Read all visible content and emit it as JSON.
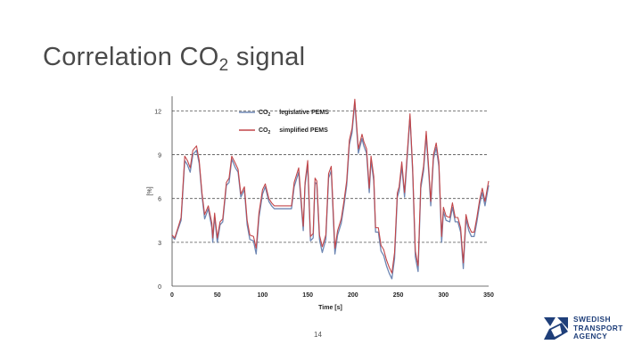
{
  "slide": {
    "title_main": "Correlation CO",
    "title_sub": "2",
    "title_tail": " signal",
    "page_number": "14"
  },
  "logo": {
    "line1": "SWEDISH",
    "line2": "TRANSPORT",
    "line3": "AGENCY",
    "color": "#1f3f7a"
  },
  "chart_data": {
    "type": "line",
    "xlabel": "Time [s]",
    "ylabel": "[%]",
    "xlim": [
      0,
      350
    ],
    "ylim": [
      0,
      13
    ],
    "xticks": [
      0,
      50,
      100,
      150,
      200,
      250,
      300,
      350
    ],
    "yticks": [
      0,
      3,
      6,
      9,
      12
    ],
    "grid": "horizontal dashed",
    "legend_position": "top-left",
    "series": [
      {
        "name": "legislative PEMS",
        "legend_prefix": "CO",
        "legend_sub": "2",
        "color": "#6d86b3",
        "x": [
          0,
          3,
          6,
          10,
          14,
          17,
          20,
          23,
          27,
          30,
          33,
          36,
          40,
          44,
          45,
          47,
          50,
          53,
          56,
          60,
          63,
          66,
          70,
          73,
          76,
          80,
          83,
          86,
          90,
          93,
          96,
          100,
          103,
          107,
          110,
          113,
          116,
          120,
          124,
          128,
          132,
          135,
          140,
          145,
          147,
          150,
          153,
          156,
          158,
          160,
          163,
          166,
          170,
          173,
          176,
          180,
          183,
          187,
          190,
          193,
          196,
          199,
          202,
          206,
          210,
          212,
          215,
          218,
          220,
          223,
          225,
          228,
          231,
          234,
          237,
          240,
          243,
          246,
          249,
          251,
          254,
          257,
          260,
          263,
          266,
          269,
          272,
          275,
          278,
          281,
          284,
          286,
          289,
          292,
          295,
          298,
          300,
          303,
          307,
          310,
          313,
          316,
          319,
          322,
          325,
          328,
          331,
          334,
          337,
          340,
          343,
          346,
          350
        ],
        "y": [
          3.4,
          3.2,
          3.8,
          4.5,
          8.6,
          8.3,
          7.8,
          9.0,
          9.3,
          8.4,
          6.2,
          4.6,
          5.3,
          4.0,
          3.0,
          4.8,
          3.0,
          4.2,
          4.4,
          6.9,
          7.1,
          8.7,
          8.1,
          7.8,
          6.1,
          6.6,
          4.2,
          3.2,
          3.1,
          2.2,
          4.7,
          6.3,
          6.8,
          5.8,
          5.5,
          5.3,
          5.3,
          5.3,
          5.3,
          5.3,
          5.3,
          6.8,
          7.8,
          3.8,
          6.9,
          8.3,
          3.1,
          3.3,
          7.1,
          7.0,
          3.2,
          2.3,
          3.2,
          7.4,
          7.9,
          2.2,
          3.5,
          4.3,
          5.5,
          6.9,
          9.7,
          10.5,
          12.6,
          9.1,
          10.1,
          9.6,
          9.1,
          6.4,
          8.6,
          7.2,
          3.7,
          3.7,
          2.4,
          2.1,
          1.4,
          0.9,
          0.5,
          1.9,
          6.1,
          6.5,
          8.2,
          6.1,
          8.8,
          11.6,
          7.8,
          2.0,
          1.0,
          6.7,
          7.9,
          10.3,
          7.5,
          5.5,
          8.7,
          9.5,
          8.2,
          3.0,
          5.1,
          4.5,
          4.4,
          5.4,
          4.4,
          4.4,
          3.7,
          1.2,
          4.6,
          3.8,
          3.4,
          3.4,
          4.4,
          5.6,
          6.4,
          5.5,
          6.9
        ]
      },
      {
        "name": "simplified PEMS",
        "legend_prefix": "CO",
        "legend_sub": "2",
        "color": "#c24548",
        "x": [
          0,
          3,
          6,
          10,
          14,
          17,
          20,
          23,
          27,
          30,
          33,
          36,
          40,
          44,
          45,
          47,
          50,
          53,
          56,
          60,
          63,
          66,
          70,
          73,
          76,
          80,
          83,
          86,
          90,
          93,
          96,
          100,
          103,
          107,
          110,
          113,
          116,
          120,
          124,
          128,
          132,
          135,
          140,
          145,
          147,
          150,
          153,
          156,
          158,
          160,
          163,
          166,
          170,
          173,
          176,
          180,
          183,
          187,
          190,
          193,
          196,
          199,
          202,
          206,
          210,
          212,
          215,
          218,
          220,
          223,
          225,
          228,
          231,
          234,
          237,
          240,
          243,
          246,
          249,
          251,
          254,
          257,
          260,
          263,
          266,
          269,
          272,
          275,
          278,
          281,
          284,
          286,
          289,
          292,
          295,
          298,
          300,
          303,
          307,
          310,
          313,
          316,
          319,
          322,
          325,
          328,
          331,
          334,
          337,
          340,
          343,
          346,
          350
        ],
        "y": [
          3.5,
          3.3,
          3.9,
          4.7,
          8.9,
          8.6,
          8.1,
          9.3,
          9.6,
          8.6,
          6.4,
          4.9,
          5.5,
          4.3,
          3.3,
          5.0,
          3.3,
          4.4,
          4.6,
          7.1,
          7.4,
          8.9,
          8.4,
          8.0,
          6.3,
          6.8,
          4.5,
          3.5,
          3.4,
          2.6,
          5.0,
          6.6,
          7.0,
          6.0,
          5.7,
          5.5,
          5.5,
          5.5,
          5.5,
          5.5,
          5.5,
          7.1,
          8.1,
          4.1,
          7.1,
          8.6,
          3.4,
          3.6,
          7.4,
          7.2,
          3.5,
          2.7,
          3.5,
          7.7,
          8.2,
          2.6,
          3.8,
          4.6,
          5.8,
          7.2,
          10.0,
          10.8,
          12.8,
          9.4,
          10.4,
          9.9,
          9.4,
          6.7,
          8.9,
          7.5,
          4.0,
          4.0,
          2.8,
          2.5,
          1.8,
          1.3,
          0.9,
          2.3,
          6.4,
          6.8,
          8.5,
          6.4,
          9.1,
          11.8,
          8.1,
          2.4,
          1.4,
          7.0,
          8.2,
          10.6,
          7.8,
          5.8,
          9.0,
          9.8,
          8.5,
          3.4,
          5.4,
          4.8,
          4.7,
          5.7,
          4.7,
          4.7,
          4.0,
          1.6,
          4.9,
          4.1,
          3.7,
          3.7,
          4.7,
          5.9,
          6.7,
          5.8,
          7.2
        ]
      }
    ]
  }
}
